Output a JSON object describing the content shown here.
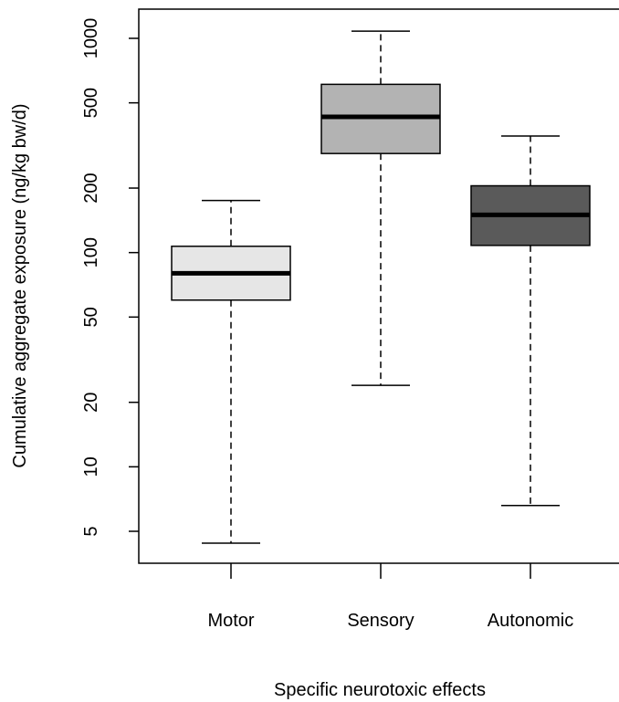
{
  "chart_data": {
    "type": "boxplot",
    "xlabel": "Specific neurotoxic effects",
    "ylabel": "Cumulative aggregate exposure (ng/kg bw/d)",
    "y_scale": "log",
    "ylim": [
      3.5,
      1400
    ],
    "y_ticks": [
      5,
      10,
      20,
      50,
      100,
      200,
      500,
      1000
    ],
    "y_tick_labels": [
      "5",
      "10",
      "20",
      "50",
      "100",
      "200",
      "500",
      "1000"
    ],
    "categories": [
      "Motor",
      "Sensory",
      "Autonomic"
    ],
    "boxes": [
      {
        "category": "Motor",
        "min": 4.4,
        "q1": 60,
        "median": 80,
        "q3": 107,
        "max": 175,
        "fill": "#e6e6e6"
      },
      {
        "category": "Sensory",
        "min": 24,
        "q1": 290,
        "median": 430,
        "q3": 610,
        "max": 1080,
        "fill": "#b3b3b3"
      },
      {
        "category": "Autonomic",
        "min": 6.6,
        "q1": 108,
        "median": 150,
        "q3": 205,
        "max": 350,
        "fill": "#5a5a5a"
      }
    ],
    "grid": false,
    "legend": "none"
  }
}
